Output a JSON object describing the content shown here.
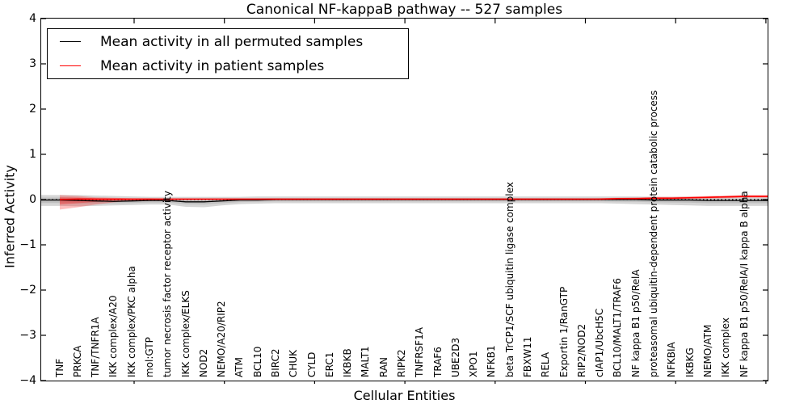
{
  "chart_data": {
    "type": "line",
    "title": "Canonical NF-kappaB pathway -- 527 samples",
    "xlabel": "Cellular Entities",
    "ylabel": "Inferred Activity",
    "ylim": [
      -4,
      4
    ],
    "ytick_labels": [
      "4",
      "3",
      "2",
      "1",
      "0",
      "−1",
      "−2",
      "−3",
      "−4"
    ],
    "grid": false,
    "legend_position": "upper left",
    "zero_line": {
      "y": 0,
      "style": "dotted",
      "color": "#000000"
    },
    "categories": [
      "TNF",
      "PRKCA",
      "TNF/TNFR1A",
      "IKK complex/A20",
      "IKK complex/PKC alpha",
      "mol:GTP",
      "tumor necrosis factor receptor activity",
      "IKK complex/ELKS",
      "NOD2",
      "NEMO/A20/RIP2",
      "ATM",
      "BCL10",
      "BIRC2",
      "CHUK",
      "CYLD",
      "ERC1",
      "IKBKB",
      "MALT1",
      "RAN",
      "RIPK2",
      "TNFRSF1A",
      "TRAF6",
      "UBE2D3",
      "XPO1",
      "NFKB1",
      "beta TrCP1/SCF ubiquitin ligase complex",
      "FBXW11",
      "RELA",
      "Exportin 1/RanGTP",
      "RIP2/NOD2",
      "cIAP1/UbcH5C",
      "BCL10/MALT1/TRAF6",
      "NF kappa B1 p50/RelA",
      "proteasomal ubiquitin-dependent protein catabolic process",
      "NFKBIA",
      "IKBKG",
      "NEMO/ATM",
      "IKK complex",
      "NF kappa B1 p50/RelA/I kappa B alpha"
    ],
    "series": [
      {
        "name": "Mean activity in all permuted samples",
        "color": "#000000",
        "band_color": "rgba(0,0,0,0.16)",
        "values": [
          -0.01,
          -0.02,
          -0.03,
          -0.04,
          -0.03,
          -0.02,
          -0.02,
          -0.05,
          -0.05,
          -0.03,
          -0.01,
          -0.01,
          0,
          0,
          0,
          0,
          0,
          0,
          0,
          0,
          0,
          0,
          0,
          0,
          0,
          0,
          0,
          0,
          0,
          0,
          0,
          0,
          0,
          -0.01,
          -0.01,
          -0.01,
          -0.02,
          -0.02,
          -0.02
        ],
        "band_upper": [
          0.1,
          0.1,
          0.09,
          0.08,
          0.07,
          0.06,
          0.06,
          0.06,
          0.06,
          0.06,
          0.06,
          0.07,
          0.07,
          0.07,
          0.07,
          0.07,
          0.07,
          0.07,
          0.07,
          0.07,
          0.07,
          0.07,
          0.07,
          0.07,
          0.07,
          0.07,
          0.07,
          0.07,
          0.07,
          0.07,
          0.07,
          0.07,
          0.07,
          0.06,
          0.06,
          0.06,
          0.05,
          0.05,
          0.05
        ],
        "band_lower": [
          -0.14,
          -0.15,
          -0.14,
          -0.13,
          -0.12,
          -0.11,
          -0.11,
          -0.16,
          -0.17,
          -0.13,
          -0.1,
          -0.09,
          -0.08,
          -0.08,
          -0.08,
          -0.08,
          -0.08,
          -0.08,
          -0.08,
          -0.08,
          -0.08,
          -0.08,
          -0.08,
          -0.08,
          -0.08,
          -0.08,
          -0.08,
          -0.08,
          -0.08,
          -0.08,
          -0.08,
          -0.09,
          -0.1,
          -0.11,
          -0.12,
          -0.13,
          -0.14,
          -0.14,
          -0.14
        ]
      },
      {
        "name": "Mean activity in patient samples",
        "color": "#ff0000",
        "band_color": "rgba(255,0,0,0.25)",
        "values": [
          0.0,
          0.01,
          0.01,
          0.01,
          0.01,
          0.01,
          0.01,
          0.01,
          0.01,
          0.01,
          0.01,
          0.01,
          0.01,
          0.01,
          0.01,
          0.01,
          0.01,
          0.01,
          0.01,
          0.01,
          0.01,
          0.01,
          0.01,
          0.01,
          0.01,
          0.01,
          0.01,
          0.01,
          0.01,
          0.01,
          0.01,
          0.02,
          0.02,
          0.03,
          0.03,
          0.04,
          0.05,
          0.06,
          0.07
        ],
        "band_upper": [
          0.1,
          0.08,
          0.05,
          0.04,
          0.03,
          0.03,
          0.02,
          0.02,
          0.02,
          0.02,
          0.02,
          0.02,
          0.02,
          0.02,
          0.02,
          0.02,
          0.02,
          0.02,
          0.02,
          0.02,
          0.02,
          0.02,
          0.02,
          0.02,
          0.02,
          0.02,
          0.02,
          0.02,
          0.02,
          0.02,
          0.03,
          0.04,
          0.05,
          0.06,
          0.06,
          0.07,
          0.08,
          0.09,
          0.1
        ],
        "band_lower": [
          -0.22,
          -0.17,
          -0.11,
          -0.06,
          -0.03,
          -0.02,
          -0.01,
          0.0,
          0.0,
          0.0,
          0.0,
          0.0,
          0.0,
          0.0,
          0.0,
          0.0,
          0.0,
          0.0,
          0.0,
          0.0,
          0.0,
          0.0,
          0.0,
          0.0,
          0.0,
          0.0,
          0.0,
          0.0,
          0.0,
          0.0,
          0.0,
          0.0,
          0.0,
          0.01,
          0.01,
          0.02,
          0.02,
          0.03,
          0.04
        ]
      }
    ]
  }
}
